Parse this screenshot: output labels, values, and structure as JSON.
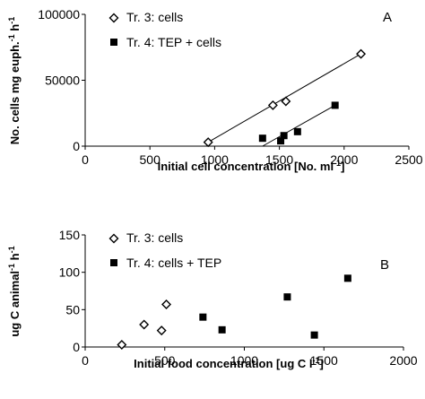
{
  "chart_data": [
    {
      "type": "scatter",
      "panel_label": "A",
      "xlabel": "Initial cell concentration [No. ml",
      "xlabel_sup": "-1",
      "xlabel_end": "]",
      "ylabel": "No. cells mg euph.",
      "ylabel_sup1": "-1",
      "ylabel_mid": " h",
      "ylabel_sup2": "-1",
      "xlim": [
        0,
        2500
      ],
      "ylim": [
        0,
        100000
      ],
      "xticks": [
        0,
        500,
        1000,
        1500,
        2000,
        2500
      ],
      "yticks": [
        0,
        50000,
        100000
      ],
      "legend_position": "top-left",
      "series": [
        {
          "name": "Tr. 3: cells",
          "marker": "diamond-open",
          "points": [
            [
              950,
              3000
            ],
            [
              1450,
              31000
            ],
            [
              1550,
              34000
            ],
            [
              2130,
              70000
            ]
          ],
          "fit_line": [
            [
              950,
              3000
            ],
            [
              2130,
              70000
            ]
          ]
        },
        {
          "name": "Tr. 4: TEP + cells",
          "marker": "square-filled",
          "points": [
            [
              1370,
              6000
            ],
            [
              1510,
              4000
            ],
            [
              1535,
              8000
            ],
            [
              1640,
              11000
            ],
            [
              1930,
              31000
            ]
          ],
          "fit_line": [
            [
              1370,
              0
            ],
            [
              1930,
              31000
            ]
          ]
        }
      ]
    },
    {
      "type": "scatter",
      "panel_label": "B",
      "xlabel": "Initial food concentration [ug C l",
      "xlabel_sup": "-1",
      "xlabel_end": "]",
      "ylabel": "ug C animal",
      "ylabel_sup1": "-1",
      "ylabel_mid": " h",
      "ylabel_sup2": "-1",
      "xlim": [
        0,
        2000
      ],
      "ylim": [
        0,
        150
      ],
      "xticks": [
        0,
        500,
        1000,
        1500,
        2000
      ],
      "yticks": [
        0,
        50,
        100,
        150
      ],
      "legend_position": "top-left",
      "series": [
        {
          "name": "Tr. 3: cells",
          "marker": "diamond-open",
          "points": [
            [
              230,
              3
            ],
            [
              370,
              30
            ],
            [
              480,
              22
            ],
            [
              510,
              57
            ]
          ]
        },
        {
          "name": "Tr. 4: cells + TEP",
          "marker": "square-filled",
          "points": [
            [
              740,
              40
            ],
            [
              860,
              23
            ],
            [
              1270,
              67
            ],
            [
              1440,
              16
            ],
            [
              1650,
              92
            ]
          ]
        }
      ]
    }
  ]
}
